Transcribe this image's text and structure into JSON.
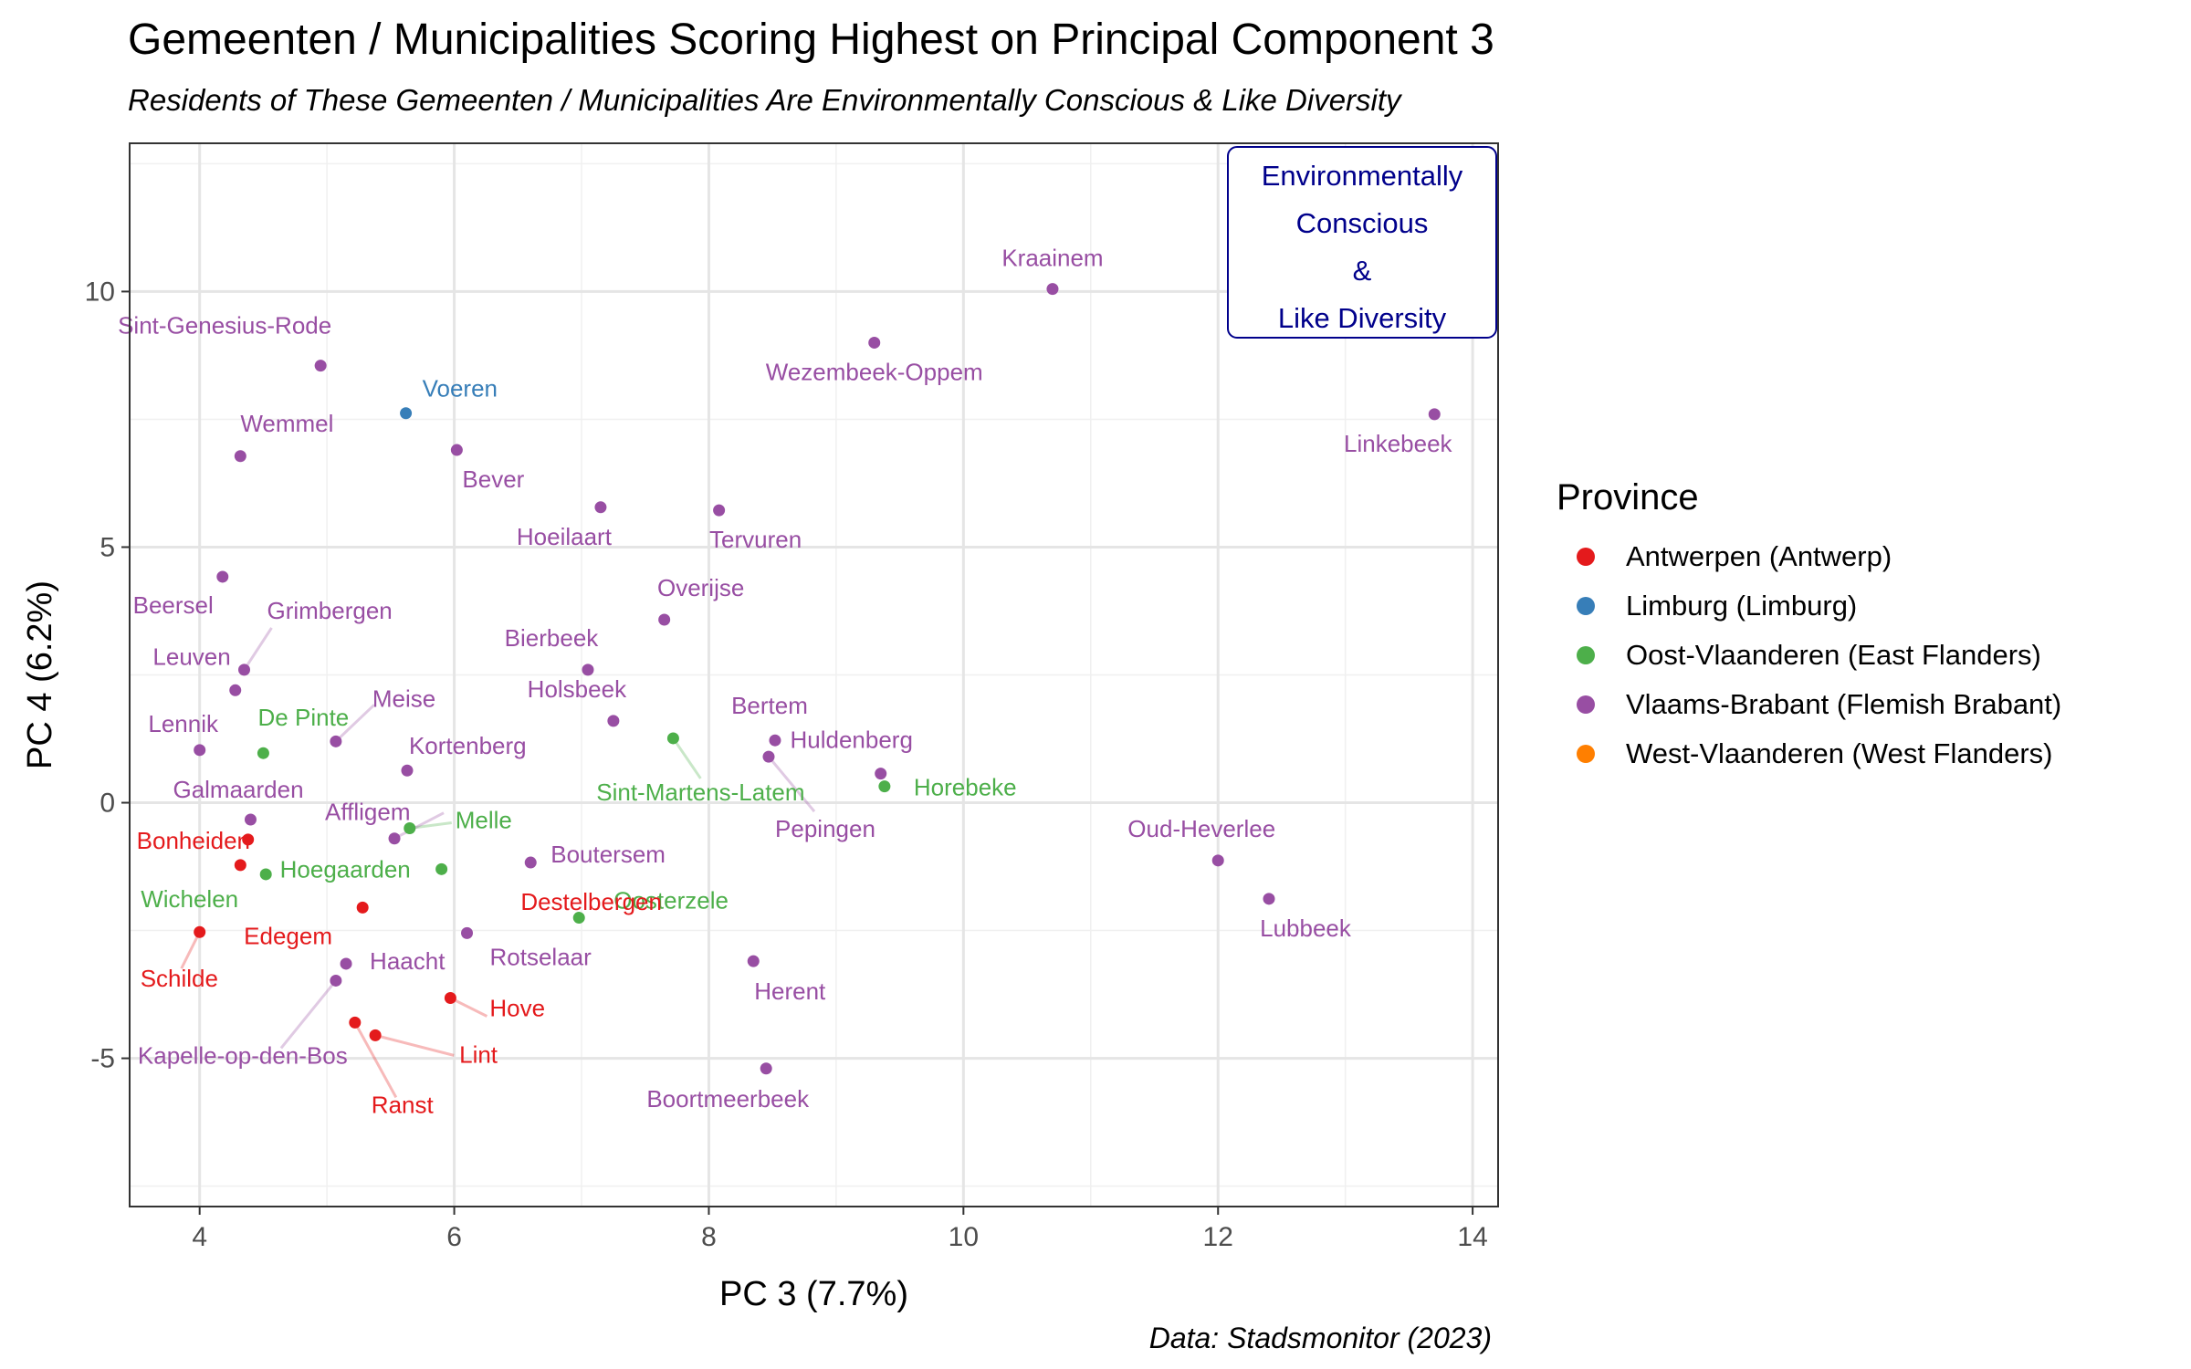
{
  "title": "Gemeenten / Municipalities Scoring Highest on Principal Component 3",
  "subtitle": "Residents of These Gemeenten / Municipalities Are Environmentally Conscious & Like Diversity",
  "caption": "Data: Stadsmonitor (2023)",
  "colors": {
    "Antwerpen (Antwerp)": "#e41a1c",
    "Limburg (Limburg)": "#377eb8",
    "Oost-Vlaanderen (East Flanders)": "#4daf4a",
    "Vlaams-Brabant (Flemish Brabant)": "#984ea3",
    "West-Vlaanderen (West Flanders)": "#ff7f00",
    "annotation": "#00008b"
  },
  "legend": {
    "title": "Province",
    "items": [
      {
        "label": "Antwerpen (Antwerp)",
        "color": "#e41a1c"
      },
      {
        "label": "Limburg (Limburg)",
        "color": "#377eb8"
      },
      {
        "label": "Oost-Vlaanderen (East Flanders)",
        "color": "#4daf4a"
      },
      {
        "label": "Vlaams-Brabant (Flemish Brabant)",
        "color": "#984ea3"
      },
      {
        "label": "West-Vlaanderen (West Flanders)",
        "color": "#ff7f00"
      }
    ]
  },
  "chart_data": {
    "type": "scatter",
    "xlabel": "PC 3 (7.7%)",
    "ylabel": "PC 4 (6.2%)",
    "xlim": [
      3.45,
      14.2
    ],
    "ylim": [
      -7.9,
      12.9
    ],
    "xticks": [
      4,
      6,
      8,
      10,
      12,
      14
    ],
    "yticks": [
      -5,
      0,
      5,
      10
    ],
    "grid": true,
    "annotation": {
      "lines": [
        "Environmentally",
        "Conscious",
        "&",
        "Like Diversity"
      ],
      "position": "top-right"
    },
    "points": [
      {
        "name": "Kraainem",
        "x": 10.7,
        "y": 10.05,
        "province": "Vlaams-Brabant (Flemish Brabant)"
      },
      {
        "name": "Wezembeek-Oppem",
        "x": 9.3,
        "y": 9.0,
        "province": "Vlaams-Brabant (Flemish Brabant)"
      },
      {
        "name": "Linkebeek",
        "x": 13.7,
        "y": 7.6,
        "province": "Vlaams-Brabant (Flemish Brabant)"
      },
      {
        "name": "Sint-Genesius-Rode",
        "x": 4.95,
        "y": 8.55,
        "province": "Vlaams-Brabant (Flemish Brabant)"
      },
      {
        "name": "Voeren",
        "x": 5.62,
        "y": 7.62,
        "province": "Limburg (Limburg)"
      },
      {
        "name": "Wemmel",
        "x": 4.32,
        "y": 6.78,
        "province": "Vlaams-Brabant (Flemish Brabant)"
      },
      {
        "name": "Bever",
        "x": 6.02,
        "y": 6.9,
        "province": "Vlaams-Brabant (Flemish Brabant)"
      },
      {
        "name": "Hoeilaart",
        "x": 7.15,
        "y": 5.78,
        "province": "Vlaams-Brabant (Flemish Brabant)"
      },
      {
        "name": "Tervuren",
        "x": 8.08,
        "y": 5.72,
        "province": "Vlaams-Brabant (Flemish Brabant)"
      },
      {
        "name": "Beersel",
        "x": 4.18,
        "y": 4.42,
        "province": "Vlaams-Brabant (Flemish Brabant)"
      },
      {
        "name": "Overijse",
        "x": 7.65,
        "y": 3.58,
        "province": "Vlaams-Brabant (Flemish Brabant)"
      },
      {
        "name": "Grimbergen",
        "x": 4.35,
        "y": 2.6,
        "province": "Vlaams-Brabant (Flemish Brabant)"
      },
      {
        "name": "Bierbeek",
        "x": 7.05,
        "y": 2.6,
        "province": "Vlaams-Brabant (Flemish Brabant)"
      },
      {
        "name": "Leuven",
        "x": 4.28,
        "y": 2.2,
        "province": "Vlaams-Brabant (Flemish Brabant)"
      },
      {
        "name": "Holsbeek",
        "x": 7.25,
        "y": 1.6,
        "province": "Vlaams-Brabant (Flemish Brabant)"
      },
      {
        "name": "Sint-Martens-Latem",
        "x": 7.72,
        "y": 1.26,
        "province": "Oost-Vlaanderen (East Flanders)"
      },
      {
        "name": "Bertem",
        "x": 8.52,
        "y": 1.22,
        "province": "Vlaams-Brabant (Flemish Brabant)"
      },
      {
        "name": "Meise",
        "x": 5.07,
        "y": 1.2,
        "province": "Vlaams-Brabant (Flemish Brabant)"
      },
      {
        "name": "Lennik",
        "x": 4.0,
        "y": 1.03,
        "province": "Vlaams-Brabant (Flemish Brabant)"
      },
      {
        "name": "De Pinte",
        "x": 4.5,
        "y": 0.97,
        "province": "Oost-Vlaanderen (East Flanders)"
      },
      {
        "name": "Pepingen",
        "x": 8.47,
        "y": 0.9,
        "province": "Vlaams-Brabant (Flemish Brabant)"
      },
      {
        "name": "Kortenberg",
        "x": 5.63,
        "y": 0.63,
        "province": "Vlaams-Brabant (Flemish Brabant)"
      },
      {
        "name": "Huldenberg",
        "x": 9.35,
        "y": 0.57,
        "province": "Vlaams-Brabant (Flemish Brabant)"
      },
      {
        "name": "Horebeke",
        "x": 9.38,
        "y": 0.32,
        "province": "Oost-Vlaanderen (East Flanders)"
      },
      {
        "name": "Galmaarden",
        "x": 4.4,
        "y": -0.33,
        "province": "Vlaams-Brabant (Flemish Brabant)"
      },
      {
        "name": "Melle",
        "x": 5.65,
        "y": -0.5,
        "province": "Oost-Vlaanderen (East Flanders)"
      },
      {
        "name": "Affligem",
        "x": 5.53,
        "y": -0.7,
        "province": "Vlaams-Brabant (Flemish Brabant)"
      },
      {
        "name": "Bonheiden",
        "x": 4.38,
        "y": -0.72,
        "province": "Antwerpen (Antwerp)"
      },
      {
        "name": "Oud-Heverlee",
        "x": 12.0,
        "y": -1.13,
        "province": "Vlaams-Brabant (Flemish Brabant)"
      },
      {
        "name": "Boutersem",
        "x": 6.6,
        "y": -1.17,
        "province": "Vlaams-Brabant (Flemish Brabant)"
      },
      {
        "name": "Hoegaarden",
        "x": 5.9,
        "y": -1.3,
        "province": "Oost-Vlaanderen (East Flanders)"
      },
      {
        "name": "Wichelen",
        "x": 4.52,
        "y": -1.4,
        "province": "Oost-Vlaanderen (East Flanders)"
      },
      {
        "name": "Lubbeek",
        "x": 12.4,
        "y": -1.88,
        "province": "Vlaams-Brabant (Flemish Brabant)"
      },
      {
        "name": "Edegem",
        "x": 5.28,
        "y": -2.05,
        "province": "Antwerpen (Antwerp)"
      },
      {
        "name": "Oosterzele",
        "x": 6.98,
        "y": -2.25,
        "province": "Oost-Vlaanderen (East Flanders)"
      },
      {
        "name": "Schilde",
        "x": 4.0,
        "y": -2.53,
        "province": "Antwerpen (Antwerp)"
      },
      {
        "name": "Rotselaar",
        "x": 6.1,
        "y": -2.55,
        "province": "Vlaams-Brabant (Flemish Brabant)"
      },
      {
        "name": "Destelbergen",
        "x": 4.32,
        "y": -1.22,
        "province": "Antwerpen (Antwerp)"
      },
      {
        "name": "Herent",
        "x": 8.35,
        "y": -3.1,
        "province": "Vlaams-Brabant (Flemish Brabant)"
      },
      {
        "name": "Haacht",
        "x": 5.15,
        "y": -3.15,
        "province": "Vlaams-Brabant (Flemish Brabant)"
      },
      {
        "name": "Kapelle-op-den-Bos",
        "x": 5.07,
        "y": -3.48,
        "province": "Vlaams-Brabant (Flemish Brabant)"
      },
      {
        "name": "Hove",
        "x": 5.97,
        "y": -3.82,
        "province": "Antwerpen (Antwerp)"
      },
      {
        "name": "Ranst",
        "x": 5.22,
        "y": -4.3,
        "province": "Antwerpen (Antwerp)"
      },
      {
        "name": "Lint",
        "x": 5.38,
        "y": -4.55,
        "province": "Antwerpen (Antwerp)"
      },
      {
        "name": "Boortmeerbeek",
        "x": 8.45,
        "y": -5.2,
        "province": "Vlaams-Brabant (Flemish Brabant)"
      }
    ]
  }
}
